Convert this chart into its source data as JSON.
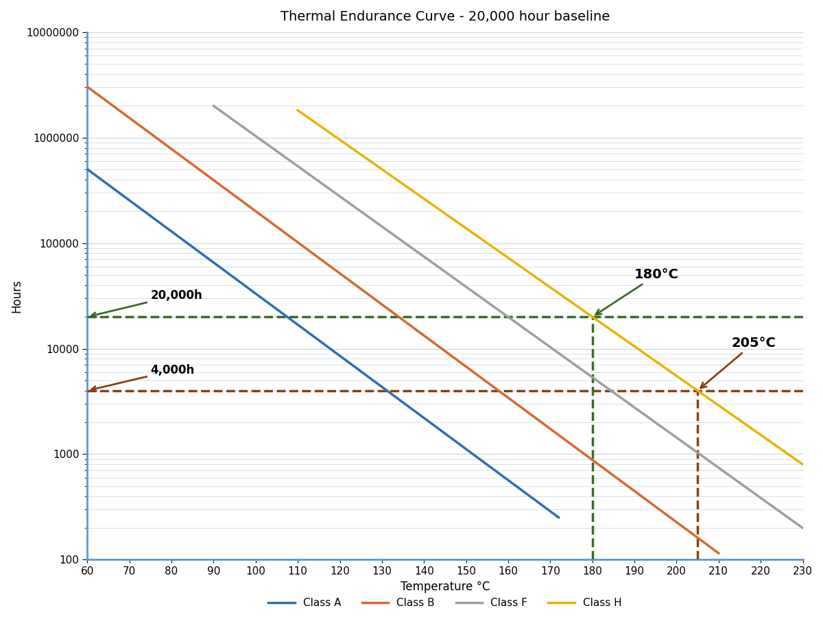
{
  "title": "Thermal Endurance Curve - 20,000 hour baseline",
  "xlabel": "Temperature °C",
  "ylabel": "Hours",
  "xmin": 60,
  "xmax": 230,
  "ymin": 100,
  "ymax": 10000000,
  "xticks": [
    60,
    70,
    80,
    90,
    100,
    110,
    120,
    130,
    140,
    150,
    160,
    170,
    180,
    190,
    200,
    210,
    220,
    230
  ],
  "lines": [
    {
      "label": "Class A",
      "color": "#2E6DB4",
      "log10_a": 7.467,
      "slope": -0.02946,
      "T_start": 60,
      "T_end": 172
    },
    {
      "label": "Class B",
      "color": "#D46A2E",
      "log10_a": 8.248,
      "slope": -0.02946,
      "T_start": 60,
      "T_end": 210
    },
    {
      "label": "Class F",
      "color": "#9E9E9E",
      "log10_a": 8.871,
      "slope": -0.02857,
      "T_start": 90,
      "T_end": 230
    },
    {
      "label": "Class H",
      "color": "#E8B400",
      "log10_a": 9.3338,
      "slope": -0.02796,
      "T_start": 110,
      "T_end": 230
    }
  ],
  "hline_green": {
    "y": 20000,
    "color": "#3B6B24",
    "label": "20,000h",
    "linestyle": "--",
    "linewidth": 2.5
  },
  "hline_brown": {
    "y": 4000,
    "color": "#8B4010",
    "label": "4,000h",
    "linestyle": "--",
    "linewidth": 2.5
  },
  "vline_green": {
    "x": 180,
    "color": "#3B6B24",
    "label": "180°C",
    "linestyle": "--",
    "linewidth": 2.5
  },
  "vline_brown": {
    "x": 205,
    "color": "#8B4010",
    "label": "205°C",
    "linestyle": "--",
    "linewidth": 2.5
  },
  "background_color": "#FFFFFF",
  "plot_bg_color": "#FFFFFF",
  "grid_color": "#C8D4E0",
  "title_fontsize": 14,
  "label_fontsize": 12,
  "tick_fontsize": 11,
  "legend_fontsize": 11,
  "line_width": 2.5
}
